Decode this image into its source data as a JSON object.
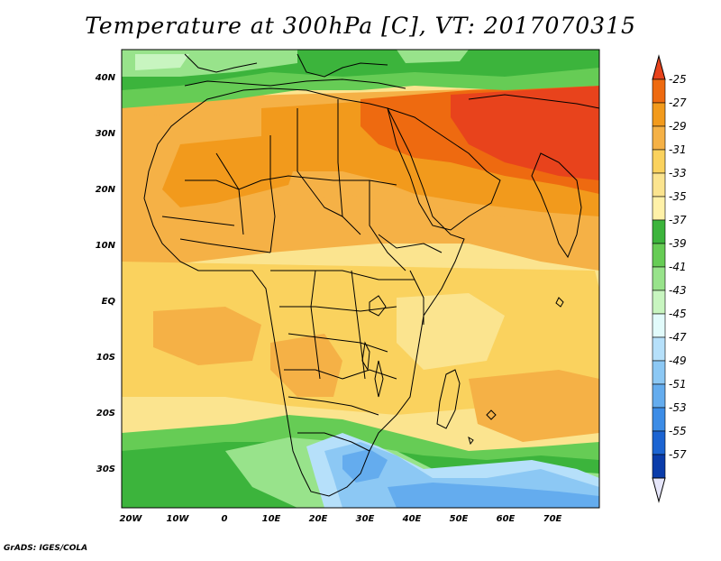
{
  "title": "Temperature at 300hPa [C], VT: 2017070315",
  "credit": "GrADS: IGES/COLA",
  "map": {
    "lat_labels": [
      "40N",
      "30N",
      "20N",
      "10N",
      "EQ",
      "10S",
      "20S",
      "30S"
    ],
    "lon_labels": [
      "20W",
      "10W",
      "0",
      "10E",
      "20E",
      "30E",
      "40E",
      "50E",
      "60E",
      "70E"
    ]
  },
  "colorbar": {
    "labels": [
      "-25",
      "-27",
      "-29",
      "-31",
      "-33",
      "-35",
      "-37",
      "-39",
      "-41",
      "-43",
      "-45",
      "-47",
      "-49",
      "-51",
      "-53",
      "-55",
      "-57"
    ],
    "colors": [
      "#e8431c",
      "#ee6a10",
      "#f29a1c",
      "#f5b146",
      "#fad25e",
      "#fbe48f",
      "#fff1a8",
      "#3cb43c",
      "#66cc55",
      "#98e38b",
      "#c8f5c0",
      "#e2fbfb",
      "#b6e0fa",
      "#8cc8f4",
      "#64acee",
      "#3c8ce6",
      "#1c64d2",
      "#0a3caa",
      "#08207a"
    ]
  }
}
